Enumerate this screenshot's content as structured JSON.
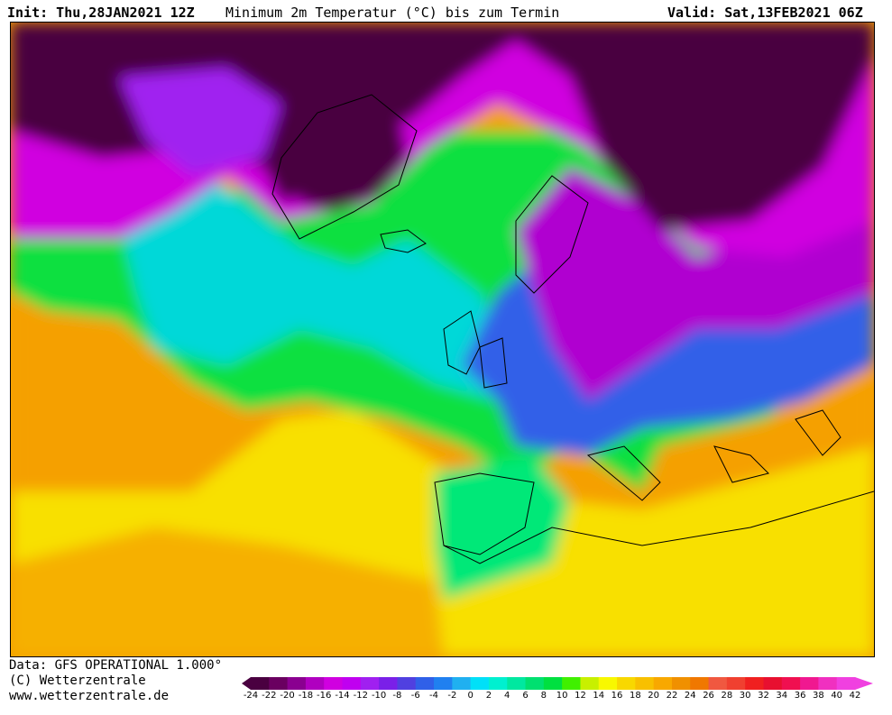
{
  "header": {
    "init": "Init: Thu,28JAN2021 12Z",
    "title": "Minimum 2m Temperatur (°C) bis zum Termin",
    "valid": "Valid: Sat,13FEB2021 06Z"
  },
  "footer": {
    "data_source": "Data: GFS OPERATIONAL 1.000°",
    "copyright": "(C) Wetterzentrale",
    "website": "www.wetterzentrale.de"
  },
  "colorbar": {
    "ticks": [
      "-24",
      "-22",
      "-20",
      "-18",
      "-16",
      "-14",
      "-12",
      "-10",
      "-8",
      "-6",
      "-4",
      "-2",
      "0",
      "2",
      "4",
      "6",
      "8",
      "10",
      "12",
      "14",
      "16",
      "18",
      "20",
      "22",
      "24",
      "26",
      "28",
      "30",
      "32",
      "34",
      "36",
      "38",
      "40",
      "42"
    ],
    "colors": [
      "#4a0040",
      "#6a0060",
      "#8a0090",
      "#b000c0",
      "#d000e0",
      "#c000f0",
      "#a020f0",
      "#7a20e8",
      "#5040e0",
      "#3060e8",
      "#2080f0",
      "#20b0f0",
      "#00e0f8",
      "#00f0d0",
      "#00e8a0",
      "#00e070",
      "#00e040",
      "#40f000",
      "#c8f000",
      "#f8f800",
      "#f8d800",
      "#f8c000",
      "#f8a800",
      "#f09000",
      "#f07800",
      "#f05840",
      "#f04030",
      "#f02020",
      "#e81030",
      "#f01050",
      "#f01890",
      "#f030c0",
      "#f040e0"
    ]
  },
  "map": {
    "variable": "minimum-2m-temperature",
    "region": "north-atlantic-europe"
  }
}
